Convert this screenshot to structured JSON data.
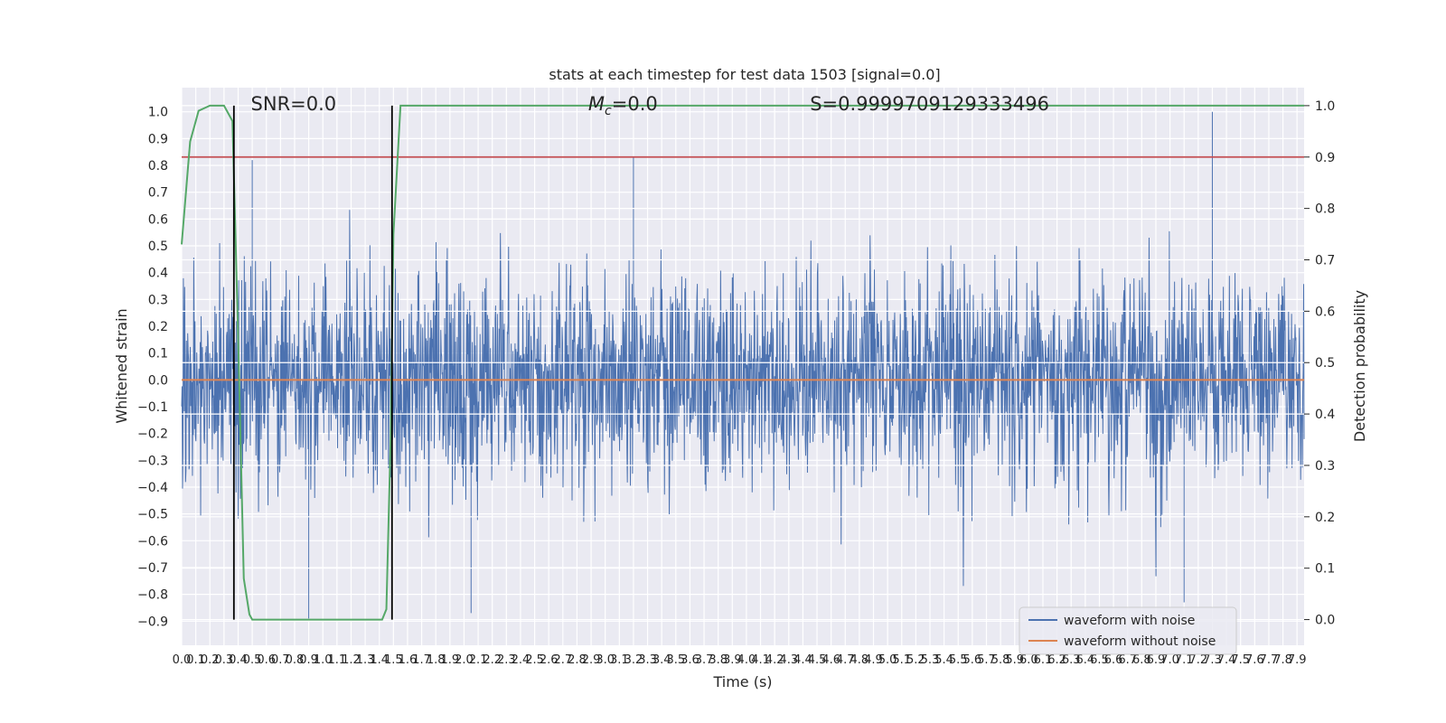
{
  "chart_data": {
    "type": "line",
    "title": "stats at each timestep for test data 1503 [signal=0.0]",
    "xlabel": "Time (s)",
    "ylabel_left": "Whitened strain",
    "ylabel_right": "Detection probability",
    "xlim": [
      0.0,
      7.95
    ],
    "ylim_left": [
      -0.99,
      1.09
    ],
    "ylim_right": [
      -0.05,
      1.035
    ],
    "x_ticks": [
      "0.0",
      "0.1",
      "0.2",
      "0.3",
      "0.4",
      "0.5",
      "0.6",
      "0.7",
      "0.8",
      "0.9",
      "1.0",
      "1.1",
      "1.2",
      "1.3",
      "1.4",
      "1.5",
      "1.6",
      "1.7",
      "1.8",
      "1.9",
      "2.0",
      "2.1",
      "2.2",
      "2.3",
      "2.4",
      "2.5",
      "2.6",
      "2.7",
      "2.8",
      "2.9",
      "3.0",
      "3.1",
      "3.2",
      "3.3",
      "3.4",
      "3.5",
      "3.6",
      "3.7",
      "3.8",
      "3.9",
      "4.0",
      "4.1",
      "4.2",
      "4.3",
      "4.4",
      "4.5",
      "4.6",
      "4.7",
      "4.8",
      "4.9",
      "5.0",
      "5.1",
      "5.2",
      "5.3",
      "5.4",
      "5.5",
      "5.6",
      "5.7",
      "5.8",
      "5.9",
      "6.0",
      "6.1",
      "6.2",
      "6.3",
      "6.4",
      "6.5",
      "6.6",
      "6.7",
      "6.8",
      "6.9",
      "7.0",
      "7.1",
      "7.2",
      "7.3",
      "7.4",
      "7.5",
      "7.6",
      "7.7",
      "7.8",
      "7.9"
    ],
    "y_ticks_left": [
      "1.0",
      "0.9",
      "0.8",
      "0.7",
      "0.6",
      "0.5",
      "0.4",
      "0.3",
      "0.2",
      "0.1",
      "0.0",
      "-0.1",
      "-0.2",
      "-0.3",
      "-0.4",
      "-0.5",
      "-0.6",
      "-0.7",
      "-0.8",
      "-0.9"
    ],
    "y_ticks_right": [
      "1.0",
      "0.9",
      "0.8",
      "0.7",
      "0.6",
      "0.5",
      "0.4",
      "0.3",
      "0.2",
      "0.1",
      "0.0"
    ],
    "grid": true,
    "legend_position": "bottom-right",
    "series": [
      {
        "name": "waveform with noise",
        "axis": "left",
        "color": "#4c72b0",
        "description_noise_std": 0.2,
        "peak_max": 1.0,
        "peak_min": -0.89
      },
      {
        "name": "waveform without noise",
        "axis": "left",
        "color": "#dd8452",
        "x": [
          0.0,
          7.95
        ],
        "y": [
          0.0,
          0.0
        ]
      },
      {
        "name": "",
        "axis": "right",
        "color": "#55a868",
        "x": [
          0.0,
          0.06,
          0.12,
          0.2,
          0.3,
          0.36,
          0.4,
          0.44,
          0.48,
          0.5,
          0.6,
          1.0,
          1.42,
          1.45,
          1.48,
          1.5,
          1.55,
          1.6,
          7.95
        ],
        "y": [
          0.73,
          0.93,
          0.99,
          1.0,
          1.0,
          0.97,
          0.55,
          0.08,
          0.01,
          0.0,
          0.0,
          0.0,
          0.0,
          0.02,
          0.35,
          0.75,
          1.0,
          1.0,
          1.0
        ]
      },
      {
        "name": "",
        "axis": "right",
        "color": "#c44e52",
        "x": [
          0.0,
          7.95
        ],
        "y": [
          0.9,
          0.9
        ]
      }
    ],
    "vertical_lines_x": [
      0.37,
      1.49
    ],
    "annotations": [
      {
        "text": "SNR=0.0",
        "x": 0.49,
        "y": 1.03
      },
      {
        "text": "=0.0",
        "math_prefix": "M",
        "math_sub": "c",
        "x": 2.88,
        "y": 1.03
      },
      {
        "text": "S=0.9999709129333496",
        "x": 4.45,
        "y": 1.03
      }
    ],
    "legend": [
      {
        "label": "waveform with noise",
        "color": "#4c72b0"
      },
      {
        "label": "waveform without noise",
        "color": "#dd8452"
      }
    ]
  }
}
